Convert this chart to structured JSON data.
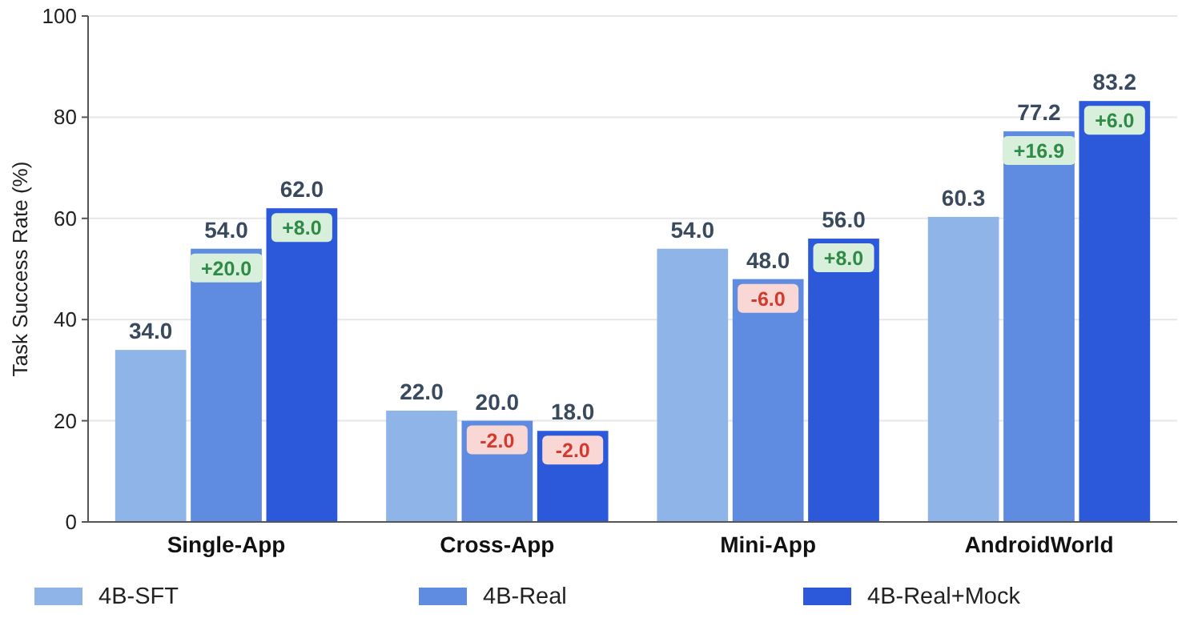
{
  "chart_data": {
    "type": "bar",
    "ylabel": "Task Success Rate (%)",
    "categories": [
      "Single-App",
      "Cross-App",
      "Mini-App",
      "AndroidWorld"
    ],
    "series": [
      {
        "name": "4B-SFT",
        "color": "#8fb4e8",
        "values": [
          34.0,
          22.0,
          54.0,
          60.3
        ],
        "value_labels": [
          "34.0",
          "22.0",
          "54.0",
          "60.3"
        ]
      },
      {
        "name": "4B-Real",
        "color": "#5f8be0",
        "values": [
          54.0,
          20.0,
          48.0,
          77.2
        ],
        "value_labels": [
          "54.0",
          "20.0",
          "48.0",
          "77.2"
        ]
      },
      {
        "name": "4B-Real+Mock",
        "color": "#2b59d9",
        "values": [
          62.0,
          18.0,
          56.0,
          83.2
        ],
        "value_labels": [
          "62.0",
          "18.0",
          "56.0",
          "83.2"
        ]
      }
    ],
    "ylim": [
      0,
      100
    ],
    "yticks": [
      0,
      20,
      40,
      60,
      80,
      100
    ],
    "grid": "y",
    "legend": "bottom",
    "annotations": [
      "+20.0",
      "+8.0",
      "-2.0",
      "-2.0",
      "-6.0",
      "+8.0",
      "+16.9",
      "+6.0"
    ]
  }
}
